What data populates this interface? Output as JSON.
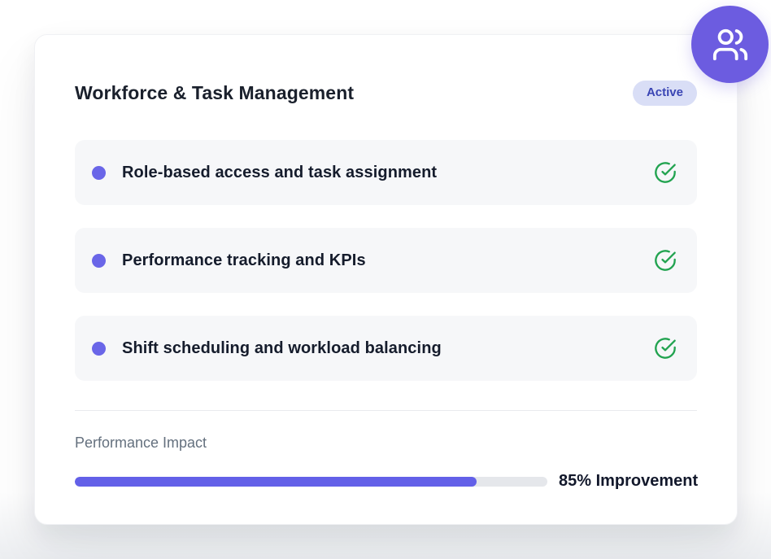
{
  "card": {
    "title": "Workforce & Task Management",
    "status_badge": "Active",
    "features": [
      {
        "label": "Role-based access and task assignment",
        "status": "complete"
      },
      {
        "label": "Performance tracking and KPIs",
        "status": "complete"
      },
      {
        "label": "Shift scheduling and workload balancing",
        "status": "complete"
      }
    ],
    "impact": {
      "label": "Performance Impact",
      "percent": 85,
      "value_text": "85% Improvement"
    }
  },
  "icons": {
    "fab": "users-icon",
    "feature_status": "check-circle-icon",
    "feature_bullet": "dot"
  },
  "colors": {
    "accent_purple": "#6c5ce0",
    "bullet_purple": "#6a66e8",
    "progress_purple": "#6360e8",
    "badge_bg": "#d9def6",
    "badge_text": "#3a45b4",
    "check_green": "#22a350",
    "row_bg": "#f6f7f9",
    "track_gray": "#e5e7eb",
    "title_text": "#1a202c",
    "muted_text": "#64707e"
  }
}
